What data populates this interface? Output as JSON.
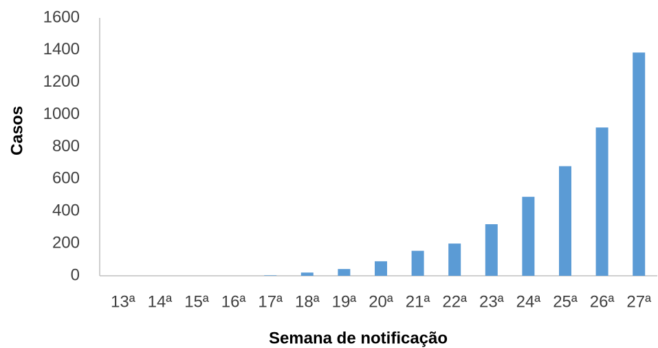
{
  "chart_data": {
    "type": "bar",
    "x_label": "Semana de notificação",
    "y_label": "Casos",
    "categories": [
      "13ª",
      "14ª",
      "15ª",
      "16ª",
      "17ª",
      "18ª",
      "19ª",
      "20ª",
      "21ª",
      "22ª",
      "23ª",
      "24ª",
      "25ª",
      "26ª",
      "27ª"
    ],
    "values": [
      0,
      0,
      0,
      0,
      3,
      20,
      42,
      90,
      155,
      200,
      320,
      490,
      680,
      920,
      1385
    ],
    "color": "#5b9bd5",
    "ylim": [
      0,
      1600
    ],
    "yticks": [
      0,
      200,
      400,
      600,
      800,
      1000,
      1200,
      1400,
      1600
    ],
    "grid": false
  }
}
